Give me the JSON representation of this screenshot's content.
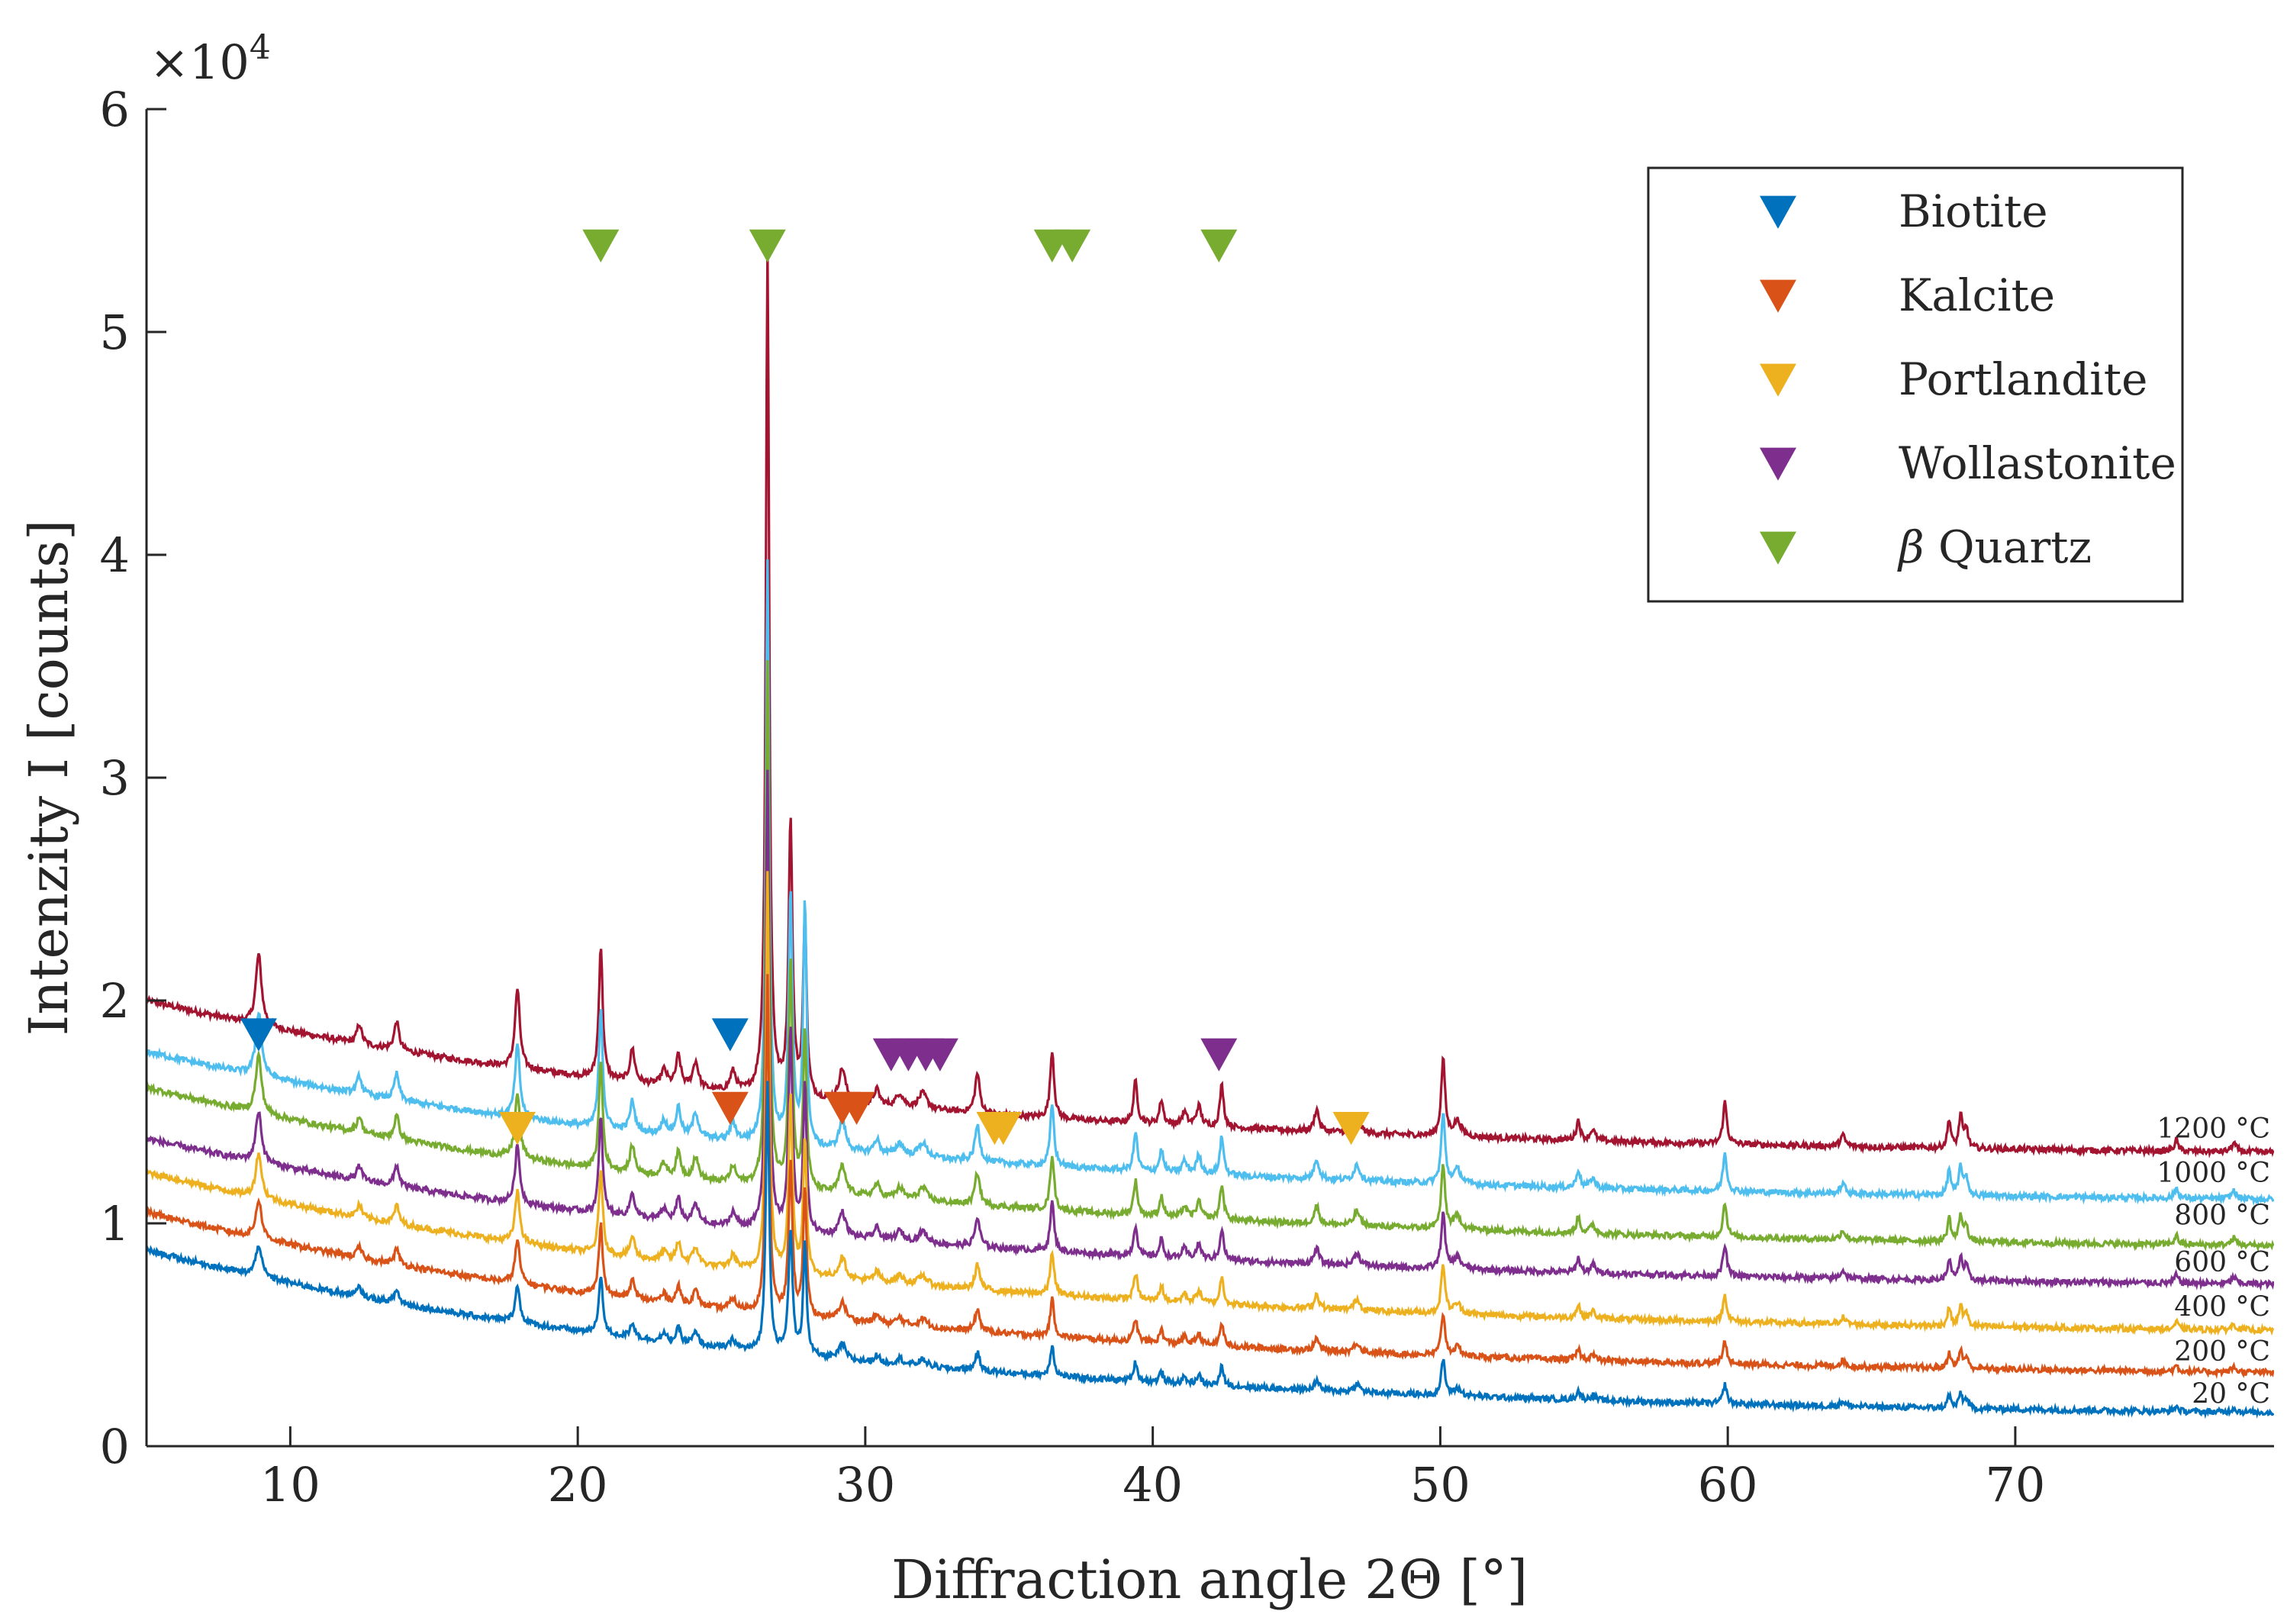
{
  "chart_data": {
    "type": "line",
    "xlabel": "Diffraction angle 2Θ [°]",
    "ylabel": "Intenzity I [counts]",
    "y_multiplier_label": "×10",
    "y_multiplier_exponent": "4",
    "xlim": [
      5,
      79
    ],
    "ylim": [
      0,
      60000
    ],
    "x_ticks": [
      10,
      20,
      30,
      40,
      50,
      60,
      70
    ],
    "y_ticks": [
      0,
      10000,
      20000,
      30000,
      40000,
      50000,
      60000
    ],
    "y_tick_labels": [
      "0",
      "1",
      "2",
      "3",
      "4",
      "5",
      "6"
    ],
    "series": [
      {
        "name": "20 °C",
        "color": "#0072BD",
        "baseline_start": 8800,
        "baseline_end": 1200,
        "anchor_y": 1600
      },
      {
        "name": "200 °C",
        "color": "#D95319",
        "baseline_start": 10500,
        "baseline_end": 3000,
        "anchor_y": 3500
      },
      {
        "name": "400 °C",
        "color": "#EDB120",
        "baseline_start": 12300,
        "baseline_end": 4900,
        "anchor_y": 5500
      },
      {
        "name": "600 °C",
        "color": "#7E2F8E",
        "baseline_start": 13800,
        "baseline_end": 7000,
        "anchor_y": 7500
      },
      {
        "name": "800 °C",
        "color": "#77AC30",
        "baseline_start": 16100,
        "baseline_end": 8700,
        "anchor_y": 9600
      },
      {
        "name": "1000 °C",
        "color": "#4DBEEE",
        "baseline_start": 17700,
        "baseline_end": 10800,
        "anchor_y": 11500
      },
      {
        "name": "1200 °C",
        "color": "#A2142F",
        "baseline_start": 20000,
        "baseline_end": 12900,
        "anchor_y": 13500
      }
    ],
    "peaks": [
      {
        "x": 8.9,
        "amp": 3200,
        "w": 0.12
      },
      {
        "x": 12.4,
        "amp": 900,
        "w": 0.1
      },
      {
        "x": 13.7,
        "amp": 1300,
        "w": 0.1
      },
      {
        "x": 17.9,
        "amp": 3600,
        "w": 0.1
      },
      {
        "x": 20.8,
        "amp": 6000,
        "w": 0.08
      },
      {
        "x": 21.9,
        "amp": 1500,
        "w": 0.1
      },
      {
        "x": 23.0,
        "amp": 700,
        "w": 0.12
      },
      {
        "x": 23.5,
        "amp": 1400,
        "w": 0.1
      },
      {
        "x": 24.1,
        "amp": 1200,
        "w": 0.12
      },
      {
        "x": 25.4,
        "amp": 900,
        "w": 0.12
      },
      {
        "x": 26.6,
        "amp": 35000,
        "w": 0.07
      },
      {
        "x": 27.4,
        "amp": 12500,
        "w": 0.08
      },
      {
        "x": 27.9,
        "amp": 17000,
        "w": 0.07
      },
      {
        "x": 29.2,
        "amp": 1500,
        "w": 0.14
      },
      {
        "x": 30.4,
        "amp": 700,
        "w": 0.12
      },
      {
        "x": 31.2,
        "amp": 600,
        "w": 0.15
      },
      {
        "x": 32.0,
        "amp": 700,
        "w": 0.18
      },
      {
        "x": 33.9,
        "amp": 1800,
        "w": 0.1
      },
      {
        "x": 36.5,
        "amp": 3100,
        "w": 0.08
      },
      {
        "x": 39.4,
        "amp": 1900,
        "w": 0.08
      },
      {
        "x": 40.3,
        "amp": 1100,
        "w": 0.08
      },
      {
        "x": 41.1,
        "amp": 600,
        "w": 0.1
      },
      {
        "x": 41.6,
        "amp": 900,
        "w": 0.1
      },
      {
        "x": 42.4,
        "amp": 1900,
        "w": 0.08
      },
      {
        "x": 45.7,
        "amp": 1000,
        "w": 0.1
      },
      {
        "x": 47.1,
        "amp": 800,
        "w": 0.12
      },
      {
        "x": 50.1,
        "amp": 3500,
        "w": 0.08
      },
      {
        "x": 50.6,
        "amp": 700,
        "w": 0.15
      },
      {
        "x": 54.8,
        "amp": 900,
        "w": 0.08
      },
      {
        "x": 55.3,
        "amp": 500,
        "w": 0.1
      },
      {
        "x": 59.9,
        "amp": 1900,
        "w": 0.08
      },
      {
        "x": 64.0,
        "amp": 500,
        "w": 0.1
      },
      {
        "x": 67.7,
        "amp": 1300,
        "w": 0.07
      },
      {
        "x": 68.1,
        "amp": 1500,
        "w": 0.07
      },
      {
        "x": 68.3,
        "amp": 900,
        "w": 0.07
      },
      {
        "x": 75.6,
        "amp": 500,
        "w": 0.08
      },
      {
        "x": 77.6,
        "amp": 400,
        "w": 0.1
      }
    ],
    "phase_markers": [
      {
        "phase": "Biotite",
        "color": "#0072BD",
        "y": 18500,
        "x": [
          8.9,
          25.3
        ]
      },
      {
        "phase": "Kalcite",
        "color": "#D95319",
        "y": 15200,
        "x": [
          25.3,
          29.2,
          29.7
        ]
      },
      {
        "phase": "Portlandite",
        "color": "#EDB120",
        "y": 14300,
        "x": [
          17.9,
          34.5,
          34.8,
          46.9
        ]
      },
      {
        "phase": "Wollastonite",
        "color": "#7E2F8E",
        "y": 17600,
        "x": [
          30.9,
          31.5,
          32.1,
          32.6,
          42.3
        ]
      },
      {
        "phase": "β Quartz",
        "color": "#77AC30",
        "y": 53900,
        "x": [
          20.8,
          26.6,
          36.5,
          37.2,
          42.3
        ]
      }
    ],
    "legend": {
      "position": "top-right",
      "entries": [
        {
          "label": "Biotite",
          "color": "#0072BD"
        },
        {
          "label": "Kalcite",
          "color": "#D95319"
        },
        {
          "label": "Portlandite",
          "color": "#EDB120"
        },
        {
          "label": "Wollastonite",
          "color": "#7E2F8E"
        },
        {
          "label_symbol": "β",
          "label": "Quartz",
          "color": "#77AC30"
        }
      ]
    }
  }
}
